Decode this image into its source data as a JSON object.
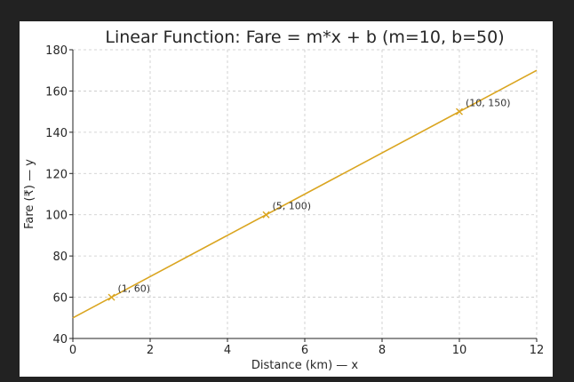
{
  "chart_data": {
    "type": "line",
    "title": "Linear Function: Fare = m*x + b  (m=10, b=50)",
    "xlabel": "Distance (km) — x",
    "ylabel": "Fare (₹) — y",
    "xlim": [
      0,
      12
    ],
    "ylim": [
      40,
      180
    ],
    "xticks": [
      0,
      2,
      4,
      6,
      8,
      10,
      12
    ],
    "yticks": [
      40,
      60,
      80,
      100,
      120,
      140,
      160,
      180
    ],
    "grid": true,
    "series": [
      {
        "x": [
          0,
          12
        ],
        "y": [
          50,
          170
        ],
        "color": "#DAA520"
      }
    ],
    "points": [
      {
        "x": 1,
        "y": 60,
        "label": "(1, 60)"
      },
      {
        "x": 5,
        "y": 100,
        "label": "(5, 100)"
      },
      {
        "x": 10,
        "y": 150,
        "label": "(10, 150)"
      }
    ],
    "marker": "x",
    "marker_color": "#DAA520"
  }
}
